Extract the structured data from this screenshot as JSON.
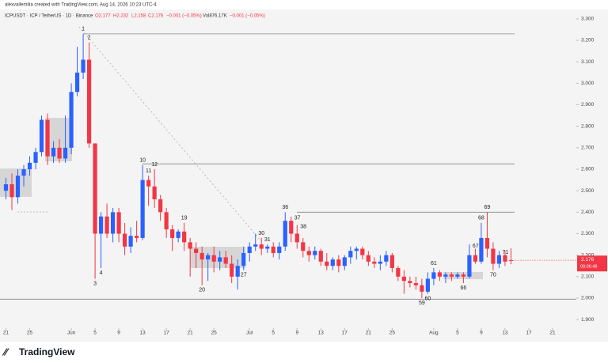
{
  "header": "alexvallemilia created with TradingView.com, Aug 14, 2026 10:23 UTC-4",
  "legend": {
    "symbol": "ICPUSDT · ICP / TetherUS · 1D · Binance",
    "open": "O2.177",
    "high": "H2.232",
    "low": "L2.158",
    "close": "C2.176",
    "change": "−0.001 (−0.05%)",
    "volume": "Vol876.17K",
    "volume_change": "−0.001 (−0.05%)"
  },
  "footer": "TradingView",
  "chart_data": {
    "type": "candlestick",
    "up_color": "#2962ff",
    "down_color": "#f23645",
    "open": [
      2.5,
      2.53,
      2.47,
      2.57,
      2.6,
      2.63,
      2.68,
      2.83,
      2.66,
      2.7,
      2.65,
      2.7,
      2.96,
      3.05,
      3.11,
      2.72,
      2.3,
      2.38,
      2.3,
      2.4,
      2.3,
      2.24,
      2.29,
      2.28,
      2.55,
      2.52,
      2.46,
      2.4,
      2.32,
      2.28,
      2.31,
      2.26,
      2.23,
      2.21,
      2.18,
      2.2,
      2.17,
      2.19,
      2.16,
      2.1,
      2.15,
      2.21,
      2.24,
      2.25,
      2.23,
      2.24,
      2.21,
      2.24,
      2.36,
      2.3,
      2.26,
      2.22,
      2.2,
      2.22,
      2.17,
      2.15,
      2.18,
      2.15,
      2.19,
      2.22,
      2.23,
      2.2,
      2.17,
      2.16,
      2.17,
      2.2,
      2.14,
      2.1,
      2.08,
      2.07,
      2.06,
      2.03,
      2.09,
      2.12,
      2.1,
      2.11,
      2.1,
      2.11,
      2.1,
      2.2,
      2.17,
      2.28,
      2.23,
      2.16,
      2.2,
      2.177
    ],
    "high": [
      2.56,
      2.58,
      2.6,
      2.62,
      2.66,
      2.7,
      2.85,
      2.86,
      2.73,
      2.74,
      2.85,
      3.0,
      3.17,
      3.23,
      3.19,
      2.72,
      2.4,
      2.44,
      2.42,
      2.42,
      2.35,
      2.33,
      2.36,
      2.62,
      2.57,
      2.6,
      2.48,
      2.42,
      2.34,
      2.32,
      2.35,
      2.28,
      2.26,
      2.24,
      2.21,
      2.24,
      2.22,
      2.22,
      2.2,
      2.18,
      2.24,
      2.26,
      2.3,
      2.28,
      2.25,
      2.26,
      2.26,
      2.4,
      2.38,
      2.34,
      2.28,
      2.24,
      2.24,
      2.23,
      2.21,
      2.19,
      2.2,
      2.2,
      2.24,
      2.24,
      2.24,
      2.22,
      2.19,
      2.2,
      2.22,
      2.21,
      2.15,
      2.13,
      2.1,
      2.1,
      2.09,
      2.12,
      2.14,
      2.13,
      2.12,
      2.12,
      2.12,
      2.12,
      2.25,
      2.23,
      2.35,
      2.4,
      2.26,
      2.22,
      2.22,
      2.232
    ],
    "low": [
      2.46,
      2.41,
      2.44,
      2.52,
      2.57,
      2.6,
      2.66,
      2.62,
      2.63,
      2.63,
      2.63,
      2.67,
      2.94,
      3.02,
      2.7,
      2.09,
      2.14,
      2.28,
      2.26,
      2.26,
      2.2,
      2.21,
      2.26,
      2.27,
      2.43,
      2.42,
      2.36,
      2.28,
      2.22,
      2.26,
      2.22,
      2.1,
      2.14,
      2.06,
      2.08,
      2.12,
      2.13,
      2.14,
      2.07,
      2.04,
      2.13,
      2.17,
      2.22,
      2.2,
      2.21,
      2.19,
      2.18,
      2.22,
      2.26,
      2.23,
      2.19,
      2.17,
      2.18,
      2.15,
      2.13,
      2.13,
      2.12,
      2.13,
      2.16,
      2.18,
      2.18,
      2.15,
      2.14,
      2.13,
      2.15,
      2.12,
      2.08,
      2.02,
      2.05,
      2.04,
      2.0,
      2.02,
      2.06,
      2.08,
      2.07,
      2.08,
      2.09,
      2.07,
      2.09,
      2.16,
      2.16,
      2.19,
      2.13,
      2.14,
      2.15,
      2.158
    ],
    "close": [
      2.53,
      2.47,
      2.57,
      2.6,
      2.63,
      2.68,
      2.83,
      2.66,
      2.7,
      2.65,
      2.7,
      2.96,
      3.05,
      3.11,
      2.72,
      2.3,
      2.38,
      2.3,
      2.4,
      2.3,
      2.24,
      2.29,
      2.28,
      2.55,
      2.52,
      2.46,
      2.4,
      2.32,
      2.28,
      2.31,
      2.26,
      2.23,
      2.21,
      2.18,
      2.2,
      2.17,
      2.19,
      2.16,
      2.1,
      2.15,
      2.21,
      2.24,
      2.25,
      2.23,
      2.24,
      2.21,
      2.24,
      2.36,
      2.3,
      2.26,
      2.22,
      2.2,
      2.22,
      2.17,
      2.15,
      2.18,
      2.15,
      2.19,
      2.22,
      2.23,
      2.2,
      2.17,
      2.16,
      2.17,
      2.2,
      2.14,
      2.1,
      2.08,
      2.07,
      2.06,
      2.03,
      2.09,
      2.12,
      2.1,
      2.11,
      2.1,
      2.11,
      2.1,
      2.2,
      2.17,
      2.28,
      2.23,
      2.16,
      2.2,
      2.17,
      2.176
    ],
    "xlim": [
      -1,
      96
    ],
    "xticks": [
      {
        "value": 0,
        "label": "21"
      },
      {
        "value": 4,
        "label": "25"
      },
      {
        "value": 11,
        "label": "Jun"
      },
      {
        "value": 15,
        "label": "5"
      },
      {
        "value": 19,
        "label": "9"
      },
      {
        "value": 23,
        "label": "13"
      },
      {
        "value": 27,
        "label": "17"
      },
      {
        "value": 31,
        "label": "21"
      },
      {
        "value": 35,
        "label": "25"
      },
      {
        "value": 41,
        "label": "Jul"
      },
      {
        "value": 45,
        "label": "5"
      },
      {
        "value": 49,
        "label": "9"
      },
      {
        "value": 53,
        "label": "13"
      },
      {
        "value": 57,
        "label": "17"
      },
      {
        "value": 61,
        "label": "21"
      },
      {
        "value": 65,
        "label": "25"
      },
      {
        "value": 72,
        "label": "Aug"
      },
      {
        "value": 76,
        "label": "5"
      },
      {
        "value": 80,
        "label": "9"
      },
      {
        "value": 84,
        "label": "13"
      },
      {
        "value": 88,
        "label": "17"
      },
      {
        "value": 92,
        "label": "21"
      }
    ],
    "ylim": [
      1.86,
      3.34
    ],
    "yticks": [
      {
        "value": 3.3,
        "label": "3.300"
      },
      {
        "value": 3.2,
        "label": "3.200"
      },
      {
        "value": 3.1,
        "label": "3.100"
      },
      {
        "value": 3.0,
        "label": "3.000"
      },
      {
        "value": 2.9,
        "label": "2.900"
      },
      {
        "value": 2.8,
        "label": "2.800"
      },
      {
        "value": 2.7,
        "label": "2.700"
      },
      {
        "value": 2.6,
        "label": "2.600"
      },
      {
        "value": 2.5,
        "label": "2.500"
      },
      {
        "value": 2.4,
        "label": "2.400"
      },
      {
        "value": 2.3,
        "label": "2.300"
      },
      {
        "value": 2.2,
        "label": "2.200"
      },
      {
        "value": 2.1,
        "label": "2.100"
      },
      {
        "value": 2.0,
        "label": "2.000"
      },
      {
        "value": 1.9,
        "label": "1.900"
      }
    ],
    "levels": [
      3.23,
      2.625,
      2.4,
      1.995
    ],
    "annotations": [
      "1",
      "2",
      "3",
      "4",
      "10",
      "11",
      "12",
      "19",
      "20",
      "27",
      "30",
      "31",
      "36",
      "37",
      "38",
      "59",
      "60",
      "61",
      "66",
      "67",
      "68",
      "69",
      "70",
      "71"
    ],
    "last_price": 2.176,
    "countdown": "09:36:48"
  }
}
